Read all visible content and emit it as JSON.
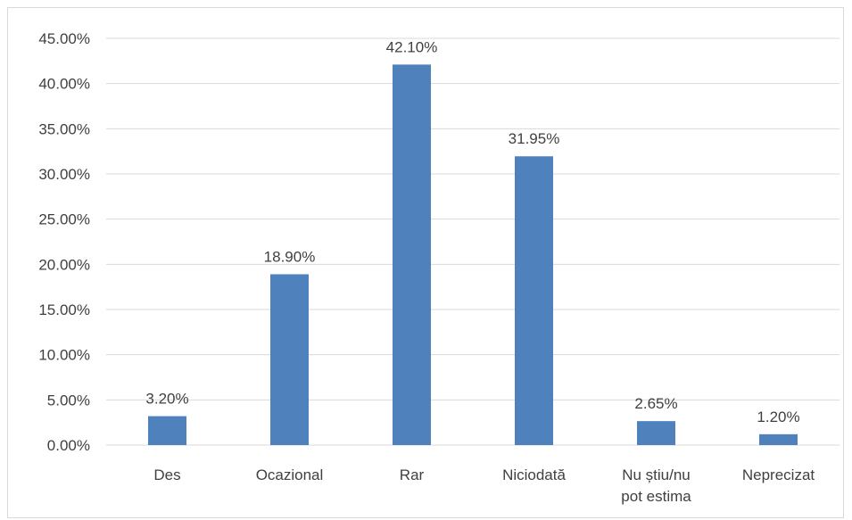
{
  "chart_data": {
    "type": "bar",
    "categories": [
      "Des",
      "Ocazional",
      "Rar",
      "Niciodată",
      "Nu știu/nu pot estima",
      "Neprecizat"
    ],
    "category_lines": [
      [
        "Des"
      ],
      [
        "Ocazional"
      ],
      [
        "Rar"
      ],
      [
        "Niciodată"
      ],
      [
        "Nu știu/nu",
        "pot estima"
      ],
      [
        "Neprecizat"
      ]
    ],
    "values": [
      3.2,
      18.9,
      42.1,
      31.95,
      2.65,
      1.2
    ],
    "data_labels": [
      "3.20%",
      "18.90%",
      "42.10%",
      "31.95%",
      "2.65%",
      "1.20%"
    ],
    "ylim": [
      0,
      45
    ],
    "yticks": [
      0,
      5,
      10,
      15,
      20,
      25,
      30,
      35,
      40,
      45
    ],
    "ytick_labels": [
      "0.00%",
      "5.00%",
      "10.00%",
      "15.00%",
      "20.00%",
      "25.00%",
      "30.00%",
      "35.00%",
      "40.00%",
      "45.00%"
    ],
    "grid": true,
    "title": "",
    "xlabel": "",
    "ylabel": "",
    "colors": {
      "bar": "#4f81bd",
      "grid": "#d9d9d9",
      "text": "#404040"
    }
  }
}
